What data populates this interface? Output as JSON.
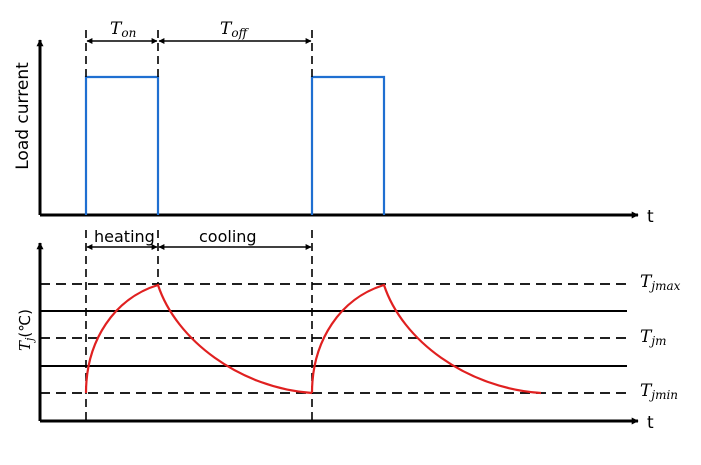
{
  "top_panel": {
    "y_label": "Load current",
    "x_label": "t",
    "t_on": {
      "main": "T",
      "sub": "on"
    },
    "t_off": {
      "main": "T",
      "sub": "off"
    },
    "pulse_color": "#1f6fd1"
  },
  "bottom_panel": {
    "y_label": {
      "main": "T",
      "sub": "j",
      "unit": "(℃)"
    },
    "x_label": "t",
    "heating_label": "heating",
    "cooling_label": "cooling",
    "level_max": {
      "main": "T",
      "sub": "jmax"
    },
    "level_mean": {
      "main": "T",
      "sub": "jm"
    },
    "level_min": {
      "main": "T",
      "sub": "jmin"
    },
    "curve_color": "#e02020"
  }
}
